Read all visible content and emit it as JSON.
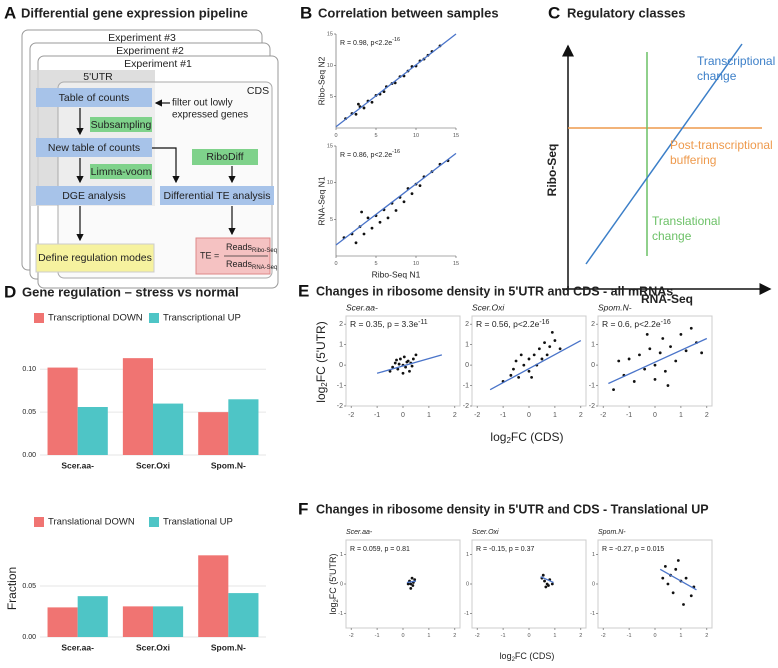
{
  "panel_a": {
    "letter": "A",
    "title": "Differential gene expression pipeline",
    "experiments": [
      "Experiment #3",
      "Experiment #2",
      "Experiment #1"
    ],
    "utr": "5'UTR",
    "cds": "CDS",
    "boxes": {
      "table": "Table of counts",
      "subsampling": "Subsampling",
      "new_table": "New table of counts",
      "limma": "Limma-voom",
      "dge": "DGE analysis",
      "define": "Define regulation modes",
      "ribodiff": "RiboDiff",
      "te_analysis": "Differential TE analysis"
    },
    "filter_note": [
      "filter out lowly",
      "expressed genes"
    ],
    "te": {
      "lhs": "TE =",
      "num": "Reads",
      "num_sub": "Ribo-Seq",
      "den": "Reads",
      "den_sub": "RNA-Seq"
    }
  },
  "panel_b": {
    "letter": "B",
    "title": "Correlation between samples"
  },
  "panel_c": {
    "letter": "C",
    "title": "Regulatory classes",
    "y_label": "Ribo-Seq",
    "x_label": "RNA-Seq",
    "transcriptional": [
      "Transcriptional",
      "change"
    ],
    "post": [
      "Post-transcriptional",
      "buffering"
    ],
    "translational": [
      "Translational",
      "change"
    ]
  },
  "panel_d": {
    "letter": "D",
    "title": "Gene regulation – stress vs normal"
  },
  "panel_e": {
    "letter": "E",
    "title": "Changes in ribosome density in 5'UTR and CDS - all mRNAs",
    "x_label": {
      "pre": "log",
      "sub": "2",
      "post": "FC (CDS)"
    },
    "y_label": {
      "pre": "log",
      "sub": "2",
      "post": "FC (5'UTR)"
    }
  },
  "panel_f": {
    "letter": "F",
    "title": "Changes in ribosome density in 5'UTR and CDS - Translational UP",
    "x_label": {
      "pre": "log",
      "sub": "2",
      "post": "FC (CDS)"
    },
    "y_label": {
      "pre": "log",
      "sub": "2",
      "post": "FC (5'UTR)"
    }
  },
  "chart_data": [
    {
      "type": "bar",
      "categories": [
        "Scer.aa-",
        "Scer.Oxi",
        "Spom.N-"
      ],
      "series": [
        {
          "name": "Transcriptional DOWN",
          "color": "#f07472",
          "values": [
            0.102,
            0.113,
            0.05
          ]
        },
        {
          "name": "Transcriptional UP",
          "color": "#4ec5c6",
          "values": [
            0.056,
            0.06,
            0.065
          ]
        }
      ],
      "ylim": [
        0,
        0.14
      ],
      "yticks": [
        {
          "value": 0,
          "label": "0.00"
        },
        {
          "value": 0.05,
          "label": "0.05"
        },
        {
          "value": 0.1,
          "label": "0.10"
        }
      ]
    },
    {
      "type": "bar",
      "categories": [
        "Scer.aa-",
        "Scer.Oxi",
        "Spom.N-"
      ],
      "y_label": "Fraction",
      "series": [
        {
          "name": "Translational DOWN",
          "color": "#f07472",
          "values": [
            0.029,
            0.03,
            0.08
          ]
        },
        {
          "name": "Translational UP",
          "color": "#4ec5c6",
          "values": [
            0.04,
            0.03,
            0.043
          ]
        }
      ],
      "ylim": [
        0,
        0.095
      ],
      "yticks": [
        {
          "value": 0,
          "label": "0.00"
        },
        {
          "value": 0.05,
          "label": "0.05"
        }
      ]
    },
    {
      "type": "scatter",
      "y_label": "Ribo-Seq N2",
      "annotation": {
        "text": "R = 0.98, p<2.2e",
        "sup": "-16"
      },
      "xlim": [
        0,
        15
      ],
      "ylim": [
        0,
        15
      ],
      "xticks": [
        0,
        5,
        10,
        15
      ],
      "yticks": [
        5,
        10,
        15
      ],
      "color": "#111111",
      "fit_color": "#4a74c9",
      "points": [
        [
          1.2,
          1.5
        ],
        [
          2,
          2.3
        ],
        [
          2.5,
          2.2
        ],
        [
          3,
          3.4
        ],
        [
          3.5,
          3.2
        ],
        [
          4,
          4.3
        ],
        [
          4.5,
          4.1
        ],
        [
          5,
          5.2
        ],
        [
          5.5,
          5.4
        ],
        [
          6,
          5.8
        ],
        [
          6.3,
          6.6
        ],
        [
          7,
          7.1
        ],
        [
          7.4,
          7.2
        ],
        [
          8,
          8.2
        ],
        [
          8.5,
          8.3
        ],
        [
          9,
          9.1
        ],
        [
          9.5,
          9.8
        ],
        [
          10,
          9.9
        ],
        [
          10.5,
          10.7
        ],
        [
          11,
          11
        ],
        [
          11.5,
          11.6
        ],
        [
          12,
          12.2
        ],
        [
          13,
          13.1
        ],
        [
          2.8,
          3.8
        ]
      ],
      "fit": [
        0,
        0.2,
        15,
        15
      ]
    },
    {
      "type": "scatter",
      "y_label": "RNA-Seq N1",
      "x_label": "Ribo-Seq N1",
      "annotation": {
        "text": "R = 0.86, p<2.2e",
        "sup": "-16"
      },
      "xlim": [
        0,
        15
      ],
      "ylim": [
        0,
        15
      ],
      "xticks": [
        0,
        5,
        10,
        15
      ],
      "yticks": [
        5,
        10,
        15
      ],
      "color": "#111111",
      "fit_color": "#4a74c9",
      "points": [
        [
          1,
          2.5
        ],
        [
          2,
          3
        ],
        [
          2.5,
          1.8
        ],
        [
          3,
          4
        ],
        [
          3.5,
          3
        ],
        [
          4,
          5.2
        ],
        [
          4.5,
          3.8
        ],
        [
          5,
          5.5
        ],
        [
          5.5,
          4.6
        ],
        [
          6,
          6.3
        ],
        [
          6.5,
          5.2
        ],
        [
          7,
          7.2
        ],
        [
          7.5,
          6.2
        ],
        [
          8,
          8
        ],
        [
          8.5,
          7.4
        ],
        [
          9,
          9.2
        ],
        [
          9.5,
          8.5
        ],
        [
          10,
          9.8
        ],
        [
          10.5,
          9.6
        ],
        [
          11,
          10.8
        ],
        [
          12,
          11.5
        ],
        [
          13,
          12.5
        ],
        [
          14,
          13
        ],
        [
          3.2,
          6
        ]
      ],
      "fit": [
        0,
        1.5,
        15,
        14
      ]
    },
    {
      "type": "scatter",
      "title": "Scer.aa-",
      "annotation": {
        "text": "R = 0.35, p = 3.3e",
        "sup": "-11"
      },
      "xlim": [
        -2.2,
        2.2
      ],
      "ylim": [
        -2,
        2.4
      ],
      "xticks": [
        -2,
        -1,
        0,
        1,
        2
      ],
      "yticks": [
        -2,
        -1,
        0,
        1,
        2
      ],
      "color": "#111111",
      "fit_color": "#4a74c9",
      "points": [
        [
          -0.3,
          0.1
        ],
        [
          -0.2,
          -0.2
        ],
        [
          -0.1,
          0.3
        ],
        [
          0,
          0
        ],
        [
          0.1,
          -0.1
        ],
        [
          0.2,
          0.2
        ],
        [
          0.3,
          0.1
        ],
        [
          -0.4,
          -0.1
        ],
        [
          0.05,
          0.4
        ],
        [
          -0.15,
          0.05
        ],
        [
          0.25,
          -0.3
        ],
        [
          0.4,
          0.3
        ],
        [
          -0.25,
          0.25
        ],
        [
          0.15,
          0.15
        ],
        [
          0,
          -0.4
        ],
        [
          0.5,
          0.5
        ],
        [
          -0.5,
          -0.3
        ],
        [
          0.35,
          -0.05
        ]
      ],
      "fit": [
        -1,
        -0.4,
        1.5,
        0.5
      ]
    },
    {
      "type": "scatter",
      "title": "Scer.Oxi",
      "annotation": {
        "text": "R = 0.56, p<2.2e",
        "sup": "-16"
      },
      "xlim": [
        -2.2,
        2.2
      ],
      "ylim": [
        -2,
        2.4
      ],
      "xticks": [
        -2,
        -1,
        0,
        1,
        2
      ],
      "yticks": [
        -2,
        -1,
        0,
        1,
        2
      ],
      "color": "#111111",
      "fit_color": "#4a74c9",
      "points": [
        [
          -1,
          -0.8
        ],
        [
          -0.7,
          -0.5
        ],
        [
          -0.5,
          0.2
        ],
        [
          -0.4,
          -0.6
        ],
        [
          -0.2,
          0
        ],
        [
          0,
          0.3
        ],
        [
          0,
          -0.3
        ],
        [
          0.2,
          0.5
        ],
        [
          0.3,
          0
        ],
        [
          0.4,
          0.8
        ],
        [
          0.5,
          0.3
        ],
        [
          0.6,
          1.1
        ],
        [
          0.7,
          0.5
        ],
        [
          0.8,
          0.9
        ],
        [
          1,
          1.2
        ],
        [
          -0.3,
          0.5
        ],
        [
          0.1,
          -0.6
        ],
        [
          1.2,
          0.8
        ],
        [
          -0.6,
          -0.2
        ],
        [
          0.9,
          1.6
        ]
      ],
      "fit": [
        -1.5,
        -1.2,
        2,
        1.2
      ]
    },
    {
      "type": "scatter",
      "title": "Spom.N-",
      "annotation": {
        "text": "R = 0.6, p<2.2e",
        "sup": "-16"
      },
      "xlim": [
        -2.2,
        2.2
      ],
      "ylim": [
        -2,
        2.4
      ],
      "xticks": [
        -2,
        -1,
        0,
        1,
        2
      ],
      "yticks": [
        -2,
        -1,
        0,
        1,
        2
      ],
      "color": "#111111",
      "fit_color": "#4a74c9",
      "points": [
        [
          -1.6,
          -1.2
        ],
        [
          -1.2,
          -0.5
        ],
        [
          -1,
          0.3
        ],
        [
          -0.8,
          -0.8
        ],
        [
          -0.6,
          0.5
        ],
        [
          -0.4,
          -0.2
        ],
        [
          -0.2,
          0.8
        ],
        [
          0,
          0
        ],
        [
          0,
          -0.7
        ],
        [
          0.2,
          0.6
        ],
        [
          0.3,
          1.3
        ],
        [
          0.4,
          -0.3
        ],
        [
          0.6,
          0.9
        ],
        [
          0.8,
          0.2
        ],
        [
          1,
          1.5
        ],
        [
          1.2,
          0.7
        ],
        [
          1.4,
          1.8
        ],
        [
          1.6,
          1.1
        ],
        [
          -0.3,
          1.5
        ],
        [
          0.5,
          -1
        ],
        [
          1.8,
          0.6
        ],
        [
          -1.4,
          0.2
        ]
      ],
      "fit": [
        -1.8,
        -0.9,
        2,
        1.3
      ]
    },
    {
      "type": "scatter",
      "title": "Scer.aa-",
      "annotation": {
        "text": "R = 0.059, p = 0.81"
      },
      "xlim": [
        -2.2,
        2.2
      ],
      "ylim": [
        -1.5,
        1.5
      ],
      "xticks": [
        -2,
        -1,
        0,
        1,
        2
      ],
      "yticks": [
        -1,
        0,
        1
      ],
      "color": "#111111",
      "fit_color": "#4a74c9",
      "points": [
        [
          0.25,
          0.1
        ],
        [
          0.3,
          0
        ],
        [
          0.35,
          0.2
        ],
        [
          0.4,
          0.05
        ],
        [
          0.3,
          -0.15
        ],
        [
          0.45,
          0.15
        ],
        [
          0.2,
          0
        ],
        [
          0.38,
          -0.05
        ]
      ],
      "fit": [
        0.15,
        0.05,
        0.5,
        0.1
      ]
    },
    {
      "type": "scatter",
      "title": "Scer.Oxi",
      "annotation": {
        "text": "R = -0.15, p = 0.37"
      },
      "xlim": [
        -2.2,
        2.2
      ],
      "ylim": [
        -1.5,
        1.5
      ],
      "xticks": [
        -2,
        -1,
        0,
        1,
        2
      ],
      "yticks": [
        -1,
        0,
        1
      ],
      "color": "#111111",
      "fit_color": "#4a74c9",
      "points": [
        [
          0.5,
          0.2
        ],
        [
          0.6,
          0.1
        ],
        [
          0.7,
          0
        ],
        [
          0.55,
          0.3
        ],
        [
          0.65,
          -0.1
        ],
        [
          0.8,
          0.15
        ],
        [
          0.75,
          -0.05
        ],
        [
          0.9,
          0
        ]
      ],
      "fit": [
        0.45,
        0.25,
        0.95,
        0.05
      ]
    },
    {
      "type": "scatter",
      "title": "Spom.N-",
      "annotation": {
        "text": "R = -0.27, p = 0.015"
      },
      "xlim": [
        -2.2,
        2.2
      ],
      "ylim": [
        -1.5,
        1.5
      ],
      "xticks": [
        -2,
        -1,
        0,
        1,
        2
      ],
      "yticks": [
        -1,
        0,
        1
      ],
      "color": "#111111",
      "fit_color": "#4a74c9",
      "points": [
        [
          0.4,
          0.6
        ],
        [
          0.6,
          0.3
        ],
        [
          0.8,
          0.5
        ],
        [
          1,
          0.1
        ],
        [
          0.7,
          -0.3
        ],
        [
          1.2,
          0.2
        ],
        [
          1.4,
          -0.4
        ],
        [
          0.5,
          0
        ],
        [
          0.9,
          0.8
        ],
        [
          1.5,
          -0.1
        ],
        [
          1.1,
          -0.7
        ],
        [
          0.3,
          0.2
        ]
      ],
      "fit": [
        0.2,
        0.5,
        1.6,
        -0.2
      ]
    }
  ]
}
